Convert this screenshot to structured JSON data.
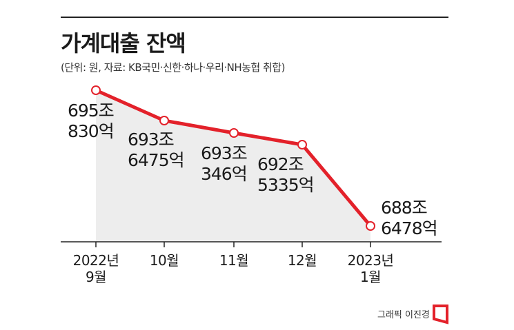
{
  "title": "가계대출 잔액",
  "subtitle": "(단위: 원, 자료: KB국민·신한·하나·우리·NH농협 취합)",
  "credit": "그래픽 이진경",
  "colors": {
    "line": "#e3212a",
    "area": "#ededed",
    "marker_fill": "#ffffff"
  },
  "chart_data": {
    "type": "area",
    "categories": [
      "2022년\n9월",
      "10월",
      "11월",
      "12월",
      "2023년\n1월"
    ],
    "values": [
      695.083,
      693.6475,
      693.0346,
      692.5335,
      688.6478
    ],
    "value_unit": "조 원",
    "data_labels": [
      "695조\n830억",
      "693조\n6475억",
      "693조\n346억",
      "692조\n5335억",
      "688조\n6478억"
    ],
    "title": "가계대출 잔액",
    "grid": false,
    "legend": "none"
  }
}
